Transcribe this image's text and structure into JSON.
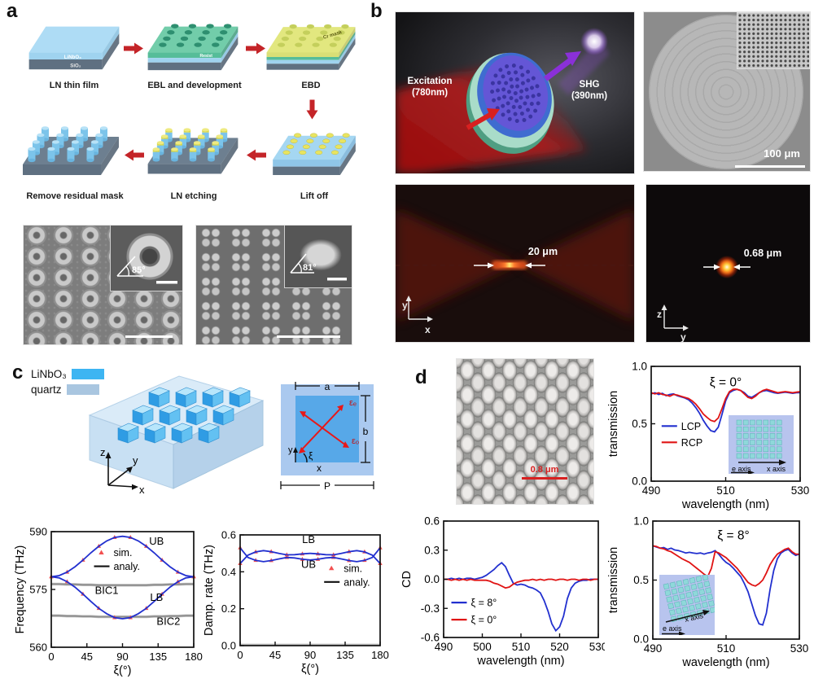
{
  "colors": {
    "accent_red": "#c42428",
    "curve_blue": "#2230cf",
    "curve_red": "#e01414",
    "marker_red": "#f25050",
    "gray_curve": "#8d8d8d",
    "ln_blue": "#3db5f2",
    "quartz_blue": "#a9c6e0",
    "slab_film_blue": "#9fd3ef",
    "substrate_gray": "#5f7081",
    "resist_green": "#56bd99",
    "cr_yellow": "#d9df76",
    "scalebar_red": "#d82020"
  },
  "panel_a": {
    "label": "a",
    "steps": {
      "s1": "LN thin film",
      "s2": "EBL and development",
      "s3": "EBD",
      "s4": "Lift off",
      "s5": "LN etching",
      "s6": "Remove residual mask"
    },
    "film_label_top": "LiNbO₃",
    "film_label_bottom": "SiO₂",
    "resist_label": "Resist",
    "cr_label": "Cr mask",
    "sem_left_angle": "85°",
    "sem_right_angle": "81°"
  },
  "panel_b": {
    "label": "b",
    "excitation_line1": "Excitation",
    "excitation_line2": "(780nm)",
    "shg_line1": "SHG",
    "shg_line2": "(390nm)",
    "scale_100": "100 μm",
    "focal_width": "20 μm",
    "spot_width": "0.68 μm",
    "axis_y": "y",
    "axis_x": "x",
    "axis_z": "z",
    "axis_y2": "y"
  },
  "panel_c": {
    "label": "c",
    "legend_ln": "LiNbO₃",
    "legend_quartz": "quartz",
    "axis_z": "z",
    "axis_y": "y",
    "axis_x": "x",
    "unit_cell": {
      "a": "a",
      "b": "b",
      "P": "P",
      "eps_e": "εₑ",
      "eps_o": "εₒ",
      "xi": "ξ",
      "x": "x",
      "y": "y"
    }
  },
  "panel_d": {
    "label": "d",
    "scale": "0.8 μm",
    "insets": {
      "x_axis": "x axis",
      "e_axis": "e axis"
    }
  },
  "chart_data": [
    {
      "id": "freq",
      "type": "line",
      "xlabel": "ξ(°)",
      "ylabel": "Frequency (THz)",
      "xlim": [
        0,
        180
      ],
      "ylim": [
        560,
        590
      ],
      "xticks": [
        0,
        45,
        90,
        135,
        180
      ],
      "xtick_labels": [
        "0",
        "45",
        "90",
        "135",
        "180"
      ],
      "yticks": [
        560,
        575,
        590
      ],
      "ytick_labels": [
        "560",
        "575",
        "590"
      ],
      "x": [
        0,
        10,
        20,
        30,
        40,
        50,
        60,
        70,
        80,
        90,
        100,
        110,
        120,
        130,
        140,
        150,
        160,
        170,
        180
      ],
      "series": [
        {
          "name": "BIC1",
          "color": "#8d8d8d",
          "halo": true,
          "y": [
            576.4,
            576.4,
            576.3,
            576.3,
            576.2,
            576.2,
            576.1,
            576.1,
            576.1,
            576.1,
            576.1,
            576.1,
            576.1,
            576.2,
            576.2,
            576.3,
            576.3,
            576.4,
            576.4
          ]
        },
        {
          "name": "BIC2",
          "color": "#8d8d8d",
          "halo": true,
          "y": [
            568.2,
            568.2,
            568.1,
            568.1,
            568.0,
            568.0,
            567.9,
            567.9,
            567.9,
            567.9,
            567.9,
            567.9,
            567.9,
            568.0,
            568.0,
            568.1,
            568.1,
            568.2,
            568.2
          ]
        },
        {
          "name": "UB",
          "color": "#2230cf",
          "marker": true,
          "y": [
            578.3,
            578.6,
            579.5,
            580.9,
            582.6,
            584.5,
            586.2,
            587.6,
            588.5,
            588.8,
            588.5,
            587.6,
            586.2,
            584.5,
            582.6,
            580.9,
            579.5,
            578.6,
            578.3
          ]
        },
        {
          "name": "LB",
          "color": "#2230cf",
          "marker": true,
          "y": [
            578.3,
            578.0,
            577.0,
            575.6,
            573.8,
            571.9,
            570.1,
            568.7,
            567.7,
            567.4,
            567.7,
            568.7,
            570.1,
            571.9,
            573.8,
            575.6,
            577.0,
            578.0,
            578.3
          ]
        }
      ],
      "annotations": [
        {
          "text": "UB",
          "x": 133,
          "y": 586.6
        },
        {
          "text": "LB",
          "x": 133,
          "y": 572.0
        },
        {
          "text": "BIC1",
          "x": 70,
          "y": 573.8
        },
        {
          "text": "BIC2",
          "x": 148,
          "y": 565.8
        }
      ],
      "legend": [
        {
          "label": "sim.",
          "color": "#f25050",
          "kind": "marker"
        },
        {
          "label": "analy.",
          "color": "#111111",
          "kind": "line"
        }
      ]
    },
    {
      "id": "damp",
      "type": "line",
      "xlabel": "ξ(°)",
      "ylabel": "Damp. rate (THz)",
      "xlim": [
        0,
        180
      ],
      "ylim": [
        0,
        0.6
      ],
      "xticks": [
        0,
        45,
        90,
        135,
        180
      ],
      "xtick_labels": [
        "0",
        "45",
        "90",
        "135",
        "180"
      ],
      "yticks": [
        0,
        0.2,
        0.4,
        0.6
      ],
      "ytick_labels": [
        "0.0",
        "0.2",
        "0.4",
        "0.6"
      ],
      "x": [
        0,
        10,
        20,
        30,
        40,
        50,
        60,
        70,
        80,
        90,
        100,
        110,
        120,
        130,
        140,
        150,
        160,
        170,
        180
      ],
      "series": [
        {
          "name": "baseline",
          "color": "#bdbdbd",
          "width": 2.5,
          "y": [
            0.005,
            0.005,
            0.005,
            0.005,
            0.005,
            0.005,
            0.005,
            0.005,
            0.005,
            0.005,
            0.005,
            0.005,
            0.005,
            0.005,
            0.005,
            0.005,
            0.005,
            0.005,
            0.005
          ]
        },
        {
          "name": "LB",
          "color": "#2230cf",
          "marker": true,
          "y": [
            0.445,
            0.49,
            0.508,
            0.515,
            0.509,
            0.5,
            0.492,
            0.493,
            0.497,
            0.5,
            0.497,
            0.493,
            0.492,
            0.5,
            0.509,
            0.515,
            0.508,
            0.49,
            0.445
          ]
        },
        {
          "name": "UB",
          "color": "#2230cf",
          "marker": true,
          "y": [
            0.53,
            0.478,
            0.462,
            0.455,
            0.461,
            0.47,
            0.478,
            0.475,
            0.468,
            0.464,
            0.468,
            0.475,
            0.478,
            0.47,
            0.461,
            0.455,
            0.462,
            0.478,
            0.53
          ]
        }
      ],
      "annotations": [
        {
          "text": "LB",
          "x": 88,
          "y": 0.555
        },
        {
          "text": "UB",
          "x": 88,
          "y": 0.422
        }
      ],
      "legend": [
        {
          "label": "sim.",
          "color": "#f25050",
          "kind": "marker"
        },
        {
          "label": "analy.",
          "color": "#111111",
          "kind": "line"
        }
      ]
    },
    {
      "id": "trans0",
      "type": "line",
      "title": "ξ = 0°",
      "xlabel": "wavelength (nm)",
      "ylabel": "transmission",
      "xlim": [
        490,
        530
      ],
      "ylim": [
        0,
        1
      ],
      "xticks": [
        490,
        510,
        530
      ],
      "xtick_labels": [
        "490",
        "510",
        "530"
      ],
      "yticks": [
        0,
        0.5,
        1.0
      ],
      "ytick_labels": [
        "0.0",
        "0.5",
        "1.0"
      ],
      "x": [
        490,
        491,
        492,
        493,
        494,
        495,
        496,
        497,
        498,
        499,
        500,
        501,
        502,
        503,
        504,
        505,
        506,
        507,
        508,
        509,
        510,
        511,
        512,
        513,
        514,
        515,
        516,
        517,
        518,
        519,
        520,
        521,
        522,
        523,
        524,
        525,
        526,
        527,
        528,
        529,
        530
      ],
      "series": [
        {
          "name": "LCP",
          "color": "#2230cf",
          "y": [
            0.76,
            0.77,
            0.755,
            0.765,
            0.745,
            0.755,
            0.76,
            0.745,
            0.735,
            0.725,
            0.71,
            0.68,
            0.64,
            0.59,
            0.53,
            0.48,
            0.44,
            0.43,
            0.47,
            0.58,
            0.7,
            0.77,
            0.79,
            0.8,
            0.79,
            0.77,
            0.74,
            0.73,
            0.75,
            0.77,
            0.785,
            0.79,
            0.78,
            0.77,
            0.765,
            0.77,
            0.775,
            0.77,
            0.765,
            0.77,
            0.77
          ]
        },
        {
          "name": "RCP",
          "color": "#e01414",
          "y": [
            0.77,
            0.76,
            0.77,
            0.755,
            0.75,
            0.74,
            0.755,
            0.75,
            0.74,
            0.73,
            0.72,
            0.7,
            0.67,
            0.63,
            0.585,
            0.555,
            0.53,
            0.52,
            0.55,
            0.63,
            0.72,
            0.78,
            0.8,
            0.8,
            0.79,
            0.76,
            0.73,
            0.72,
            0.74,
            0.77,
            0.79,
            0.8,
            0.79,
            0.78,
            0.77,
            0.775,
            0.78,
            0.775,
            0.77,
            0.775,
            0.78
          ]
        }
      ],
      "annotations": [],
      "legend": [
        {
          "label": "LCP",
          "color": "#2230cf",
          "kind": "line"
        },
        {
          "label": "RCP",
          "color": "#e01414",
          "kind": "line"
        }
      ]
    },
    {
      "id": "cd",
      "type": "line",
      "xlabel": "wavelength (nm)",
      "ylabel": "CD",
      "xlim": [
        490,
        530
      ],
      "ylim": [
        -0.6,
        0.6
      ],
      "xticks": [
        490,
        500,
        510,
        520,
        530
      ],
      "xtick_labels": [
        "490",
        "500",
        "510",
        "520",
        "530"
      ],
      "yticks": [
        -0.6,
        -0.3,
        0,
        0.3,
        0.6
      ],
      "ytick_labels": [
        "-0.6",
        "-0.3",
        "0.0",
        "0.3",
        "0.6"
      ],
      "x": [
        490,
        491,
        492,
        493,
        494,
        495,
        496,
        497,
        498,
        499,
        500,
        501,
        502,
        503,
        504,
        505,
        506,
        507,
        508,
        509,
        510,
        511,
        512,
        513,
        514,
        515,
        516,
        517,
        518,
        519,
        520,
        521,
        522,
        523,
        524,
        525,
        526,
        527,
        528,
        529,
        530
      ],
      "series": [
        {
          "name": "ξ = 8°",
          "color": "#2230cf",
          "y": [
            0.0,
            0.0,
            0.01,
            0.0,
            0.01,
            0.0,
            0.01,
            0.01,
            0.0,
            0.01,
            0.02,
            0.04,
            0.07,
            0.1,
            0.14,
            0.17,
            0.13,
            0.04,
            -0.04,
            -0.06,
            -0.05,
            -0.06,
            -0.08,
            -0.09,
            -0.11,
            -0.14,
            -0.22,
            -0.33,
            -0.46,
            -0.53,
            -0.49,
            -0.38,
            -0.2,
            -0.09,
            -0.04,
            -0.02,
            -0.01,
            -0.01,
            0.0,
            0.0,
            0.0
          ]
        },
        {
          "name": "ξ = 0°",
          "color": "#e01414",
          "y": [
            0.0,
            0.0,
            -0.01,
            0.0,
            -0.01,
            0.0,
            -0.01,
            0.0,
            -0.01,
            -0.01,
            -0.01,
            -0.01,
            -0.02,
            -0.04,
            -0.05,
            -0.07,
            -0.09,
            -0.08,
            -0.05,
            -0.03,
            -0.02,
            -0.01,
            -0.01,
            0.0,
            -0.01,
            0.0,
            -0.01,
            0.0,
            0.0,
            -0.01,
            0.0,
            0.0,
            -0.01,
            0.0,
            0.0,
            -0.01,
            0.0,
            0.0,
            -0.01,
            0.0,
            0.0
          ]
        }
      ],
      "annotations": [],
      "legend": [
        {
          "label": "ξ = 8°",
          "color": "#2230cf",
          "kind": "line"
        },
        {
          "label": "ξ = 0°",
          "color": "#e01414",
          "kind": "line"
        }
      ]
    },
    {
      "id": "trans8",
      "type": "line",
      "title": "ξ = 8°",
      "xlabel": "wavelength (nm)",
      "ylabel": "transmission",
      "xlim": [
        490,
        530
      ],
      "ylim": [
        0,
        1
      ],
      "xticks": [
        490,
        510,
        530
      ],
      "xtick_labels": [
        "490",
        "510",
        "530"
      ],
      "yticks": [
        0,
        0.5,
        1.0
      ],
      "ytick_labels": [
        "0.0",
        "0.5",
        "1.0"
      ],
      "x": [
        490,
        491,
        492,
        493,
        494,
        495,
        496,
        497,
        498,
        499,
        500,
        501,
        502,
        503,
        504,
        505,
        506,
        507,
        508,
        509,
        510,
        511,
        512,
        513,
        514,
        515,
        516,
        517,
        518,
        519,
        520,
        521,
        522,
        523,
        524,
        525,
        526,
        527,
        528,
        529,
        530
      ],
      "series": [
        {
          "name": "LCP",
          "color": "#2230cf",
          "y": [
            0.79,
            0.78,
            0.77,
            0.775,
            0.76,
            0.77,
            0.755,
            0.75,
            0.74,
            0.73,
            0.735,
            0.73,
            0.725,
            0.73,
            0.72,
            0.73,
            0.735,
            0.75,
            0.72,
            0.68,
            0.65,
            0.63,
            0.6,
            0.565,
            0.53,
            0.47,
            0.4,
            0.3,
            0.2,
            0.13,
            0.12,
            0.22,
            0.42,
            0.58,
            0.68,
            0.73,
            0.75,
            0.76,
            0.73,
            0.71,
            0.72
          ]
        },
        {
          "name": "RCP",
          "color": "#e01414",
          "y": [
            0.79,
            0.785,
            0.77,
            0.765,
            0.75,
            0.74,
            0.72,
            0.7,
            0.68,
            0.665,
            0.65,
            0.625,
            0.6,
            0.575,
            0.55,
            0.53,
            0.6,
            0.74,
            0.73,
            0.71,
            0.69,
            0.66,
            0.63,
            0.6,
            0.56,
            0.52,
            0.48,
            0.46,
            0.45,
            0.47,
            0.5,
            0.56,
            0.63,
            0.68,
            0.72,
            0.74,
            0.76,
            0.77,
            0.74,
            0.72,
            0.72
          ]
        }
      ],
      "annotations": [],
      "legend": []
    }
  ]
}
